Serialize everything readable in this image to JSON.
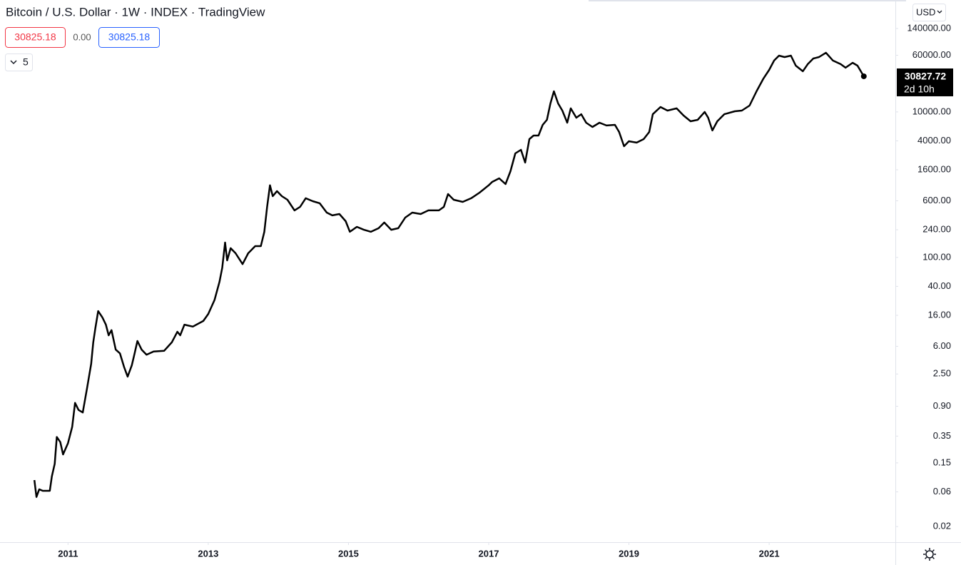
{
  "header": {
    "title": "Bitcoin / U.S. Dollar · 1W · INDEX · TradingView",
    "open": "30825.18",
    "change": "0.00",
    "close": "30825.18",
    "indicators": "5",
    "currency": "USD"
  },
  "chart_data": {
    "type": "line",
    "color": "#000000",
    "log_scale": true,
    "countdown": "2d 10h",
    "x": [
      2010.52,
      2010.55,
      2010.59,
      2010.64,
      2010.74,
      2010.77,
      2010.81,
      2010.84,
      2010.89,
      2010.93,
      2011.0,
      2011.06,
      2011.1,
      2011.15,
      2011.21,
      2011.27,
      2011.33,
      2011.36,
      2011.39,
      2011.43,
      2011.49,
      2011.54,
      2011.58,
      2011.62,
      2011.68,
      2011.74,
      2011.8,
      2011.85,
      2011.91,
      2011.95,
      2011.99,
      2012.05,
      2012.12,
      2012.22,
      2012.37,
      2012.48,
      2012.56,
      2012.6,
      2012.66,
      2012.78,
      2012.93,
      2013.0,
      2013.09,
      2013.16,
      2013.2,
      2013.24,
      2013.27,
      2013.32,
      2013.39,
      2013.49,
      2013.57,
      2013.67,
      2013.75,
      2013.8,
      2013.84,
      2013.88,
      2013.92,
      2013.98,
      2014.05,
      2014.13,
      2014.23,
      2014.31,
      2014.39,
      2014.49,
      2014.59,
      2014.69,
      2014.77,
      2014.87,
      2014.96,
      2015.02,
      2015.12,
      2015.22,
      2015.32,
      2015.43,
      2015.51,
      2015.61,
      2015.71,
      2015.81,
      2015.91,
      2016.03,
      2016.14,
      2016.29,
      2016.36,
      2016.42,
      2016.5,
      2016.63,
      2016.75,
      2016.87,
      2017.0,
      2017.05,
      2017.15,
      2017.24,
      2017.31,
      2017.38,
      2017.46,
      2017.52,
      2017.58,
      2017.64,
      2017.71,
      2017.77,
      2017.83,
      2017.88,
      2017.93,
      2017.99,
      2018.05,
      2018.12,
      2018.17,
      2018.25,
      2018.32,
      2018.39,
      2018.48,
      2018.58,
      2018.68,
      2018.8,
      2018.86,
      2018.93,
      2019.0,
      2019.11,
      2019.21,
      2019.29,
      2019.34,
      2019.45,
      2019.55,
      2019.68,
      2019.78,
      2019.88,
      2019.98,
      2020.08,
      2020.13,
      2020.19,
      2020.26,
      2020.36,
      2020.51,
      2020.61,
      2020.72,
      2020.82,
      2020.92,
      2021.0,
      2021.07,
      2021.14,
      2021.22,
      2021.31,
      2021.38,
      2021.48,
      2021.55,
      2021.63,
      2021.71,
      2021.81,
      2021.91,
      2022.02,
      2022.09,
      2022.19,
      2022.26,
      2022.35
    ],
    "values": [
      0.087,
      0.051,
      0.065,
      0.062,
      0.062,
      0.098,
      0.146,
      0.34,
      0.29,
      0.196,
      0.28,
      0.47,
      1.0,
      0.8,
      0.74,
      1.57,
      3.45,
      6.8,
      10.7,
      18.3,
      15,
      11.9,
      8.5,
      10,
      5.4,
      4.8,
      3.1,
      2.3,
      3.3,
      4.8,
      7.1,
      5.4,
      4.6,
      5.1,
      5.2,
      6.8,
      9.5,
      8.5,
      11.9,
      11.2,
      13.4,
      16.7,
      26,
      46,
      72,
      160,
      91,
      134,
      114,
      81,
      114,
      143,
      143,
      225,
      495,
      980,
      695,
      815,
      695,
      620,
      443,
      495,
      650,
      593,
      555,
      413,
      378,
      395,
      315,
      225,
      263,
      240,
      225,
      252,
      302,
      240,
      252,
      353,
      413,
      395,
      443,
      443,
      495,
      743,
      620,
      580,
      650,
      778,
      980,
      1090,
      1220,
      1020,
      1530,
      2690,
      3010,
      2010,
      4230,
      4730,
      4730,
      6640,
      7780,
      13060,
      19190,
      13060,
      10420,
      7110,
      11170,
      8320,
      9300,
      7110,
      6210,
      7110,
      6500,
      6640,
      5300,
      3370,
      3950,
      3780,
      4230,
      5300,
      9300,
      11670,
      10420,
      11170,
      8910,
      7430,
      7780,
      9980,
      8320,
      5550,
      7430,
      9300,
      10200,
      10420,
      12220,
      19190,
      28840,
      37760,
      50700,
      59300,
      56700,
      59300,
      43250,
      36140,
      45290,
      54200,
      56700,
      65000,
      50700,
      45290,
      40460,
      47300,
      43250,
      30827.72
    ],
    "xlim": [
      2010.03,
      2022.8
    ],
    "xticks": [
      2011,
      2013,
      2015,
      2017,
      2019,
      2021
    ],
    "ylim": [
      0.0122,
      345000
    ],
    "yticks": [
      {
        "value": 0.02,
        "label": "0.02"
      },
      {
        "value": 0.06,
        "label": "0.06"
      },
      {
        "value": 0.15,
        "label": "0.15"
      },
      {
        "value": 0.35,
        "label": "0.35"
      },
      {
        "value": 0.9,
        "label": "0.90"
      },
      {
        "value": 2.5,
        "label": "2.50"
      },
      {
        "value": 6,
        "label": "6.00"
      },
      {
        "value": 16,
        "label": "16.00"
      },
      {
        "value": 40,
        "label": "40.00"
      },
      {
        "value": 100,
        "label": "100.00"
      },
      {
        "value": 240,
        "label": "240.00"
      },
      {
        "value": 600,
        "label": "600.00"
      },
      {
        "value": 1600,
        "label": "1600.00"
      },
      {
        "value": 4000,
        "label": "4000.00"
      },
      {
        "value": 10000,
        "label": "10000.00"
      },
      {
        "value": 60000,
        "label": "60000.00"
      },
      {
        "value": 140000,
        "label": "140000.00"
      }
    ]
  }
}
